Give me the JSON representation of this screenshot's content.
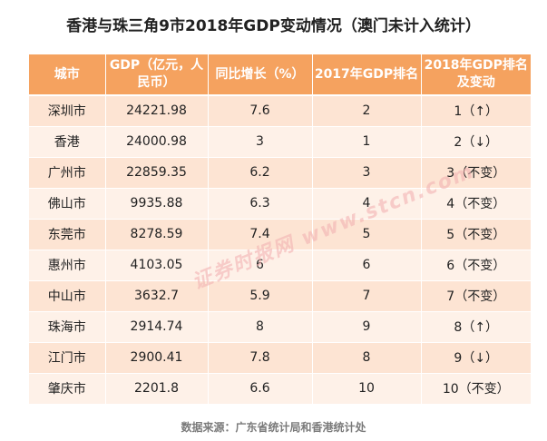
{
  "title": "香港与珠三角9市2018年GDP变动情况（澳门未计入统计）",
  "headers": [
    "城市",
    "GDP（亿元，人民币）",
    "同比增长（%）",
    "2017年GDP排名",
    "2018年GDP排名及变动"
  ],
  "rows": [
    {
      "city": "深圳市",
      "gdp": "24221.98",
      "growth": "7.6",
      "rank2017": "2",
      "rank2018": "1（↑）"
    },
    {
      "city": "香港",
      "gdp": "24000.98",
      "growth": "3",
      "rank2017": "1",
      "rank2018": "2（↓）"
    },
    {
      "city": "广州市",
      "gdp": "22859.35",
      "growth": "6.2",
      "rank2017": "3",
      "rank2018": "3（不变）"
    },
    {
      "city": "佛山市",
      "gdp": "9935.88",
      "growth": "6.3",
      "rank2017": "4",
      "rank2018": "4（不变）"
    },
    {
      "city": "东莞市",
      "gdp": "8278.59",
      "growth": "7.4",
      "rank2017": "5",
      "rank2018": "5（不变）"
    },
    {
      "city": "惠州市",
      "gdp": "4103.05",
      "growth": "6",
      "rank2017": "6",
      "rank2018": "6（不变）"
    },
    {
      "city": "中山市",
      "gdp": "3632.7",
      "growth": "5.9",
      "rank2017": "7",
      "rank2018": "7（不变）"
    },
    {
      "city": "珠海市",
      "gdp": "2914.74",
      "growth": "8",
      "rank2017": "9",
      "rank2018": "8（↑）"
    },
    {
      "city": "江门市",
      "gdp": "2900.41",
      "growth": "7.8",
      "rank2017": "8",
      "rank2018": "9（↓）"
    },
    {
      "city": "肇庆市",
      "gdp": "2201.8",
      "growth": "6.6",
      "rank2017": "10",
      "rank2018": "10（不变）"
    }
  ],
  "source": "数据来源：广东省统计局和香港统计处",
  "watermark": "证券时报网 www.stcn.com",
  "colors": {
    "header_bg": "#f5a25f",
    "row_odd": "#fde4d3",
    "row_even": "#fef1e8"
  }
}
